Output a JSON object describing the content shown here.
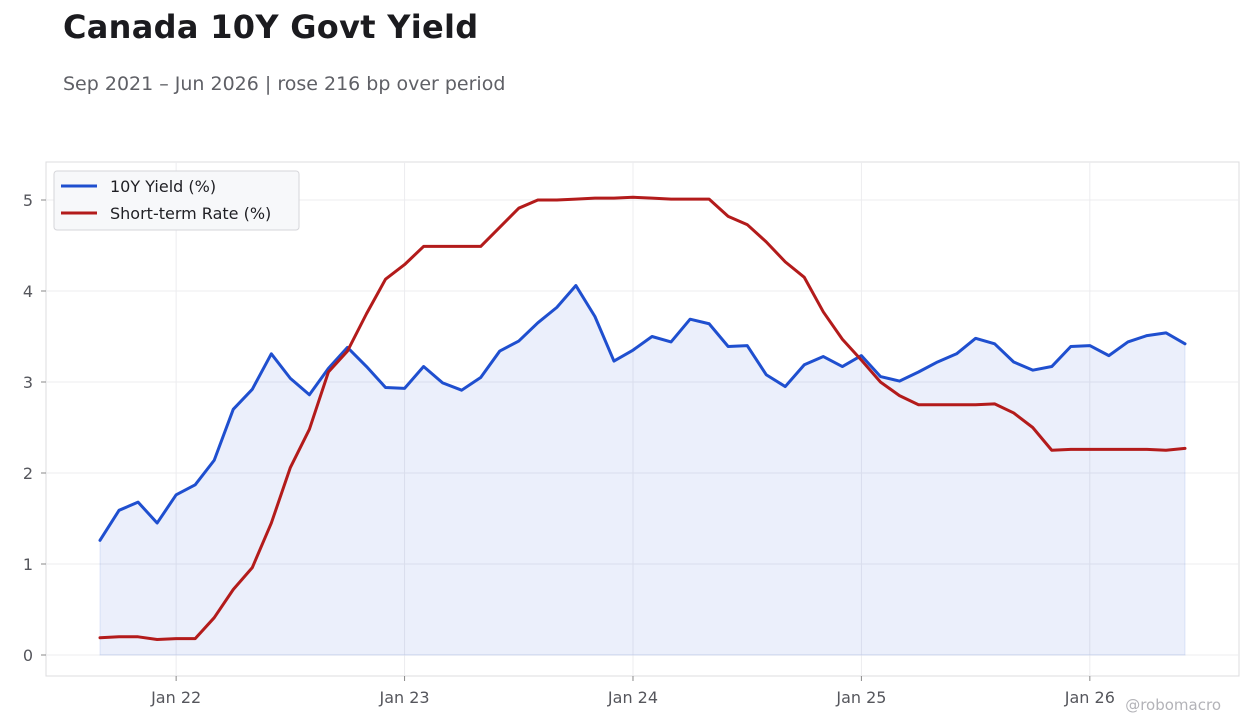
{
  "chart_data": {
    "type": "line",
    "title": "Canada 10Y Govt Yield",
    "subtitle": "Sep 2021 – Jun 2026 | rose 216 bp over period",
    "watermark": "@robomacro",
    "x_ticks": [
      "Jan 22",
      "Jan 23",
      "Jan 24",
      "Jan 25",
      "Jan 26"
    ],
    "y_ticks": [
      "0",
      "1",
      "2",
      "3",
      "4",
      "5"
    ],
    "ylim": [
      -0.2,
      5.4
    ],
    "grid": true,
    "legend_position": "top-left",
    "x": [
      "2021-09",
      "2021-10",
      "2021-11",
      "2021-12",
      "2022-01",
      "2022-02",
      "2022-03",
      "2022-04",
      "2022-05",
      "2022-06",
      "2022-07",
      "2022-08",
      "2022-09",
      "2022-10",
      "2022-11",
      "2022-12",
      "2023-01",
      "2023-02",
      "2023-03",
      "2023-04",
      "2023-05",
      "2023-06",
      "2023-07",
      "2023-08",
      "2023-09",
      "2023-10",
      "2023-11",
      "2023-12",
      "2024-01",
      "2024-02",
      "2024-03",
      "2024-04",
      "2024-05",
      "2024-06",
      "2024-07",
      "2024-08",
      "2024-09",
      "2024-10",
      "2024-11",
      "2024-12",
      "2025-01",
      "2025-02",
      "2025-03",
      "2025-04",
      "2025-05",
      "2025-06",
      "2025-07",
      "2025-08",
      "2025-09",
      "2025-10",
      "2025-11",
      "2025-12",
      "2026-01",
      "2026-02",
      "2026-03",
      "2026-04",
      "2026-05",
      "2026-06"
    ],
    "series": [
      {
        "name": "10Y Yield (%)",
        "color": "#1f4fcf",
        "fill": true,
        "values": [
          1.26,
          1.59,
          1.68,
          1.45,
          1.76,
          1.87,
          2.14,
          2.7,
          2.92,
          3.31,
          3.04,
          2.86,
          3.15,
          3.38,
          3.17,
          2.94,
          2.93,
          3.17,
          2.99,
          2.91,
          3.05,
          3.34,
          3.45,
          3.65,
          3.82,
          4.06,
          3.72,
          3.23,
          3.35,
          3.5,
          3.44,
          3.69,
          3.64,
          3.39,
          3.4,
          3.08,
          2.95,
          3.19,
          3.28,
          3.17,
          3.29,
          3.06,
          3.01,
          3.11,
          3.22,
          3.31,
          3.48,
          3.42,
          3.22,
          3.13,
          3.17,
          3.39,
          3.4,
          3.29,
          3.44,
          3.51,
          3.54,
          3.42
        ]
      },
      {
        "name": "Short-term Rate (%)",
        "color": "#b31b1b",
        "fill": false,
        "values": [
          0.19,
          0.2,
          0.2,
          0.17,
          0.18,
          0.18,
          0.41,
          0.72,
          0.96,
          1.45,
          2.06,
          2.48,
          3.11,
          3.34,
          3.75,
          4.13,
          4.29,
          4.49,
          4.49,
          4.49,
          4.49,
          4.7,
          4.91,
          5.0,
          5.0,
          5.01,
          5.02,
          5.02,
          5.03,
          5.02,
          5.01,
          5.01,
          5.01,
          4.82,
          4.73,
          4.54,
          4.32,
          4.15,
          3.77,
          3.47,
          3.24,
          3.0,
          2.85,
          2.75,
          2.75,
          2.75,
          2.75,
          2.76,
          2.66,
          2.5,
          2.25,
          2.26,
          2.26,
          2.26,
          2.26,
          2.26,
          2.25,
          2.27
        ]
      }
    ]
  }
}
